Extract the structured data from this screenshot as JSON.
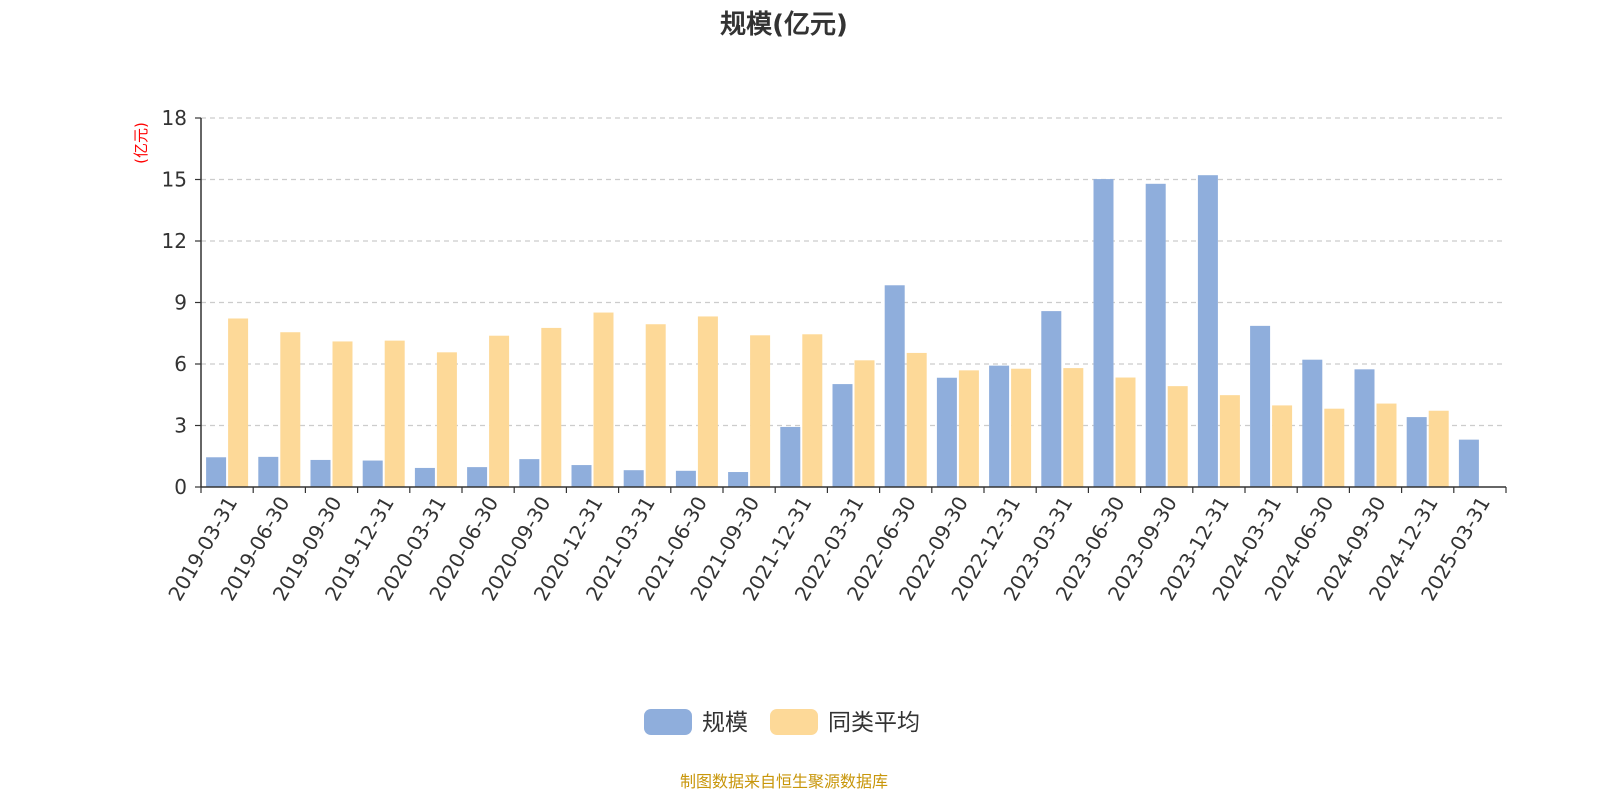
{
  "chart_data": {
    "type": "bar",
    "title": "规模(亿元)",
    "ylabel": "(亿元)",
    "xlabel": "",
    "ylim": [
      0,
      18
    ],
    "yticks": [
      0,
      3,
      6,
      9,
      12,
      15,
      18
    ],
    "grid": true,
    "legend_position": "bottom",
    "categories": [
      "2019-03-31",
      "2019-06-30",
      "2019-09-30",
      "2019-12-31",
      "2020-03-31",
      "2020-06-30",
      "2020-09-30",
      "2020-12-31",
      "2021-03-31",
      "2021-06-30",
      "2021-09-30",
      "2021-12-31",
      "2022-03-31",
      "2022-06-30",
      "2022-09-30",
      "2022-12-31",
      "2023-03-31",
      "2023-06-30",
      "2023-09-30",
      "2023-12-31",
      "2024-03-31",
      "2024-06-30",
      "2024-09-30",
      "2024-12-31",
      "2025-03-31"
    ],
    "series": [
      {
        "name": "规模",
        "color": "#8faedc",
        "values": [
          1.45,
          1.47,
          1.32,
          1.29,
          0.93,
          0.97,
          1.36,
          1.07,
          0.82,
          0.79,
          0.73,
          2.93,
          5.02,
          9.84,
          5.33,
          5.92,
          8.58,
          15.02,
          14.79,
          15.21,
          7.86,
          6.21,
          5.74,
          3.41,
          2.31
        ]
      },
      {
        "name": "同类平均",
        "color": "#fdd998",
        "values": [
          8.22,
          7.55,
          7.1,
          7.14,
          6.57,
          7.38,
          7.76,
          8.51,
          7.94,
          8.32,
          7.4,
          7.45,
          6.18,
          6.54,
          5.69,
          5.77,
          5.8,
          5.34,
          4.92,
          4.48,
          3.98,
          3.82,
          4.07,
          3.72,
          null
        ]
      }
    ],
    "source_note": "制图数据来自恒生聚源数据库",
    "colors": {
      "title": "#333333",
      "axis": "#333333",
      "grid": "#cccccc",
      "ylabel": "#ff0000",
      "source_note": "#c8960a"
    }
  }
}
